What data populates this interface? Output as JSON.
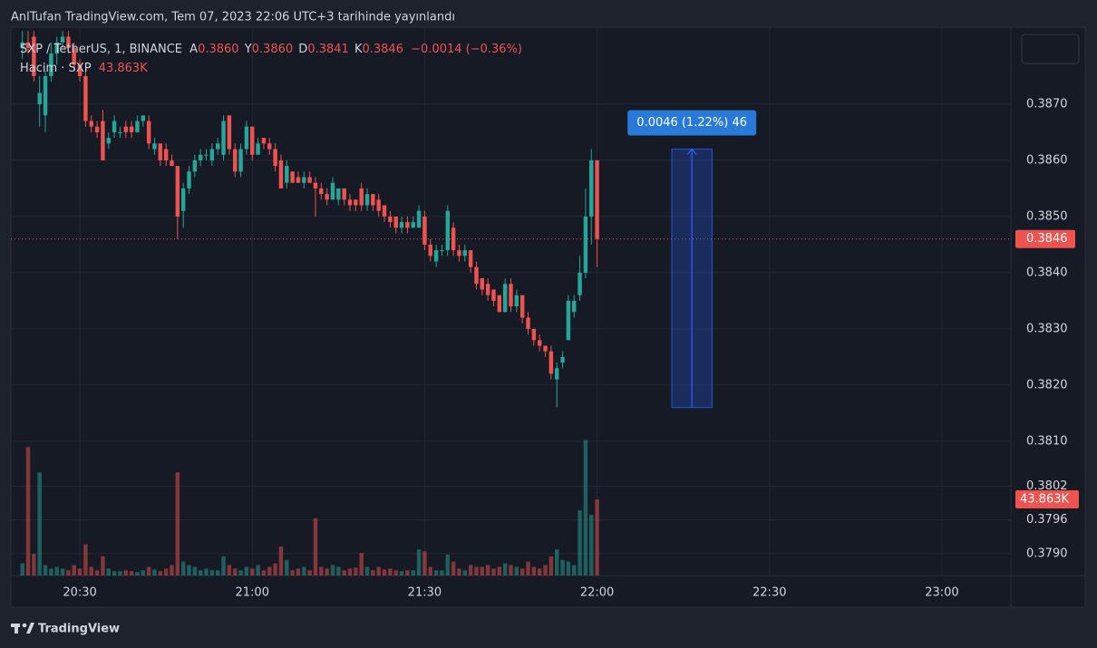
{
  "header": {
    "title": "AnlTufan TradingView.com, Tem 07, 2023 22:06 UTC+3 tarihinde yayınlandı"
  },
  "legend": {
    "symbol": "SXP / TetherUS, 1, BINANCE",
    "open_label": "A",
    "open": "0.3860",
    "high_label": "Y",
    "high": "0.3860",
    "low_label": "D",
    "low": "0.3841",
    "close_label": "K",
    "close": "0.3846",
    "change": "−0.0014 (−0.36%)",
    "volume_name": "Hacim · SXP",
    "volume": "43.863K"
  },
  "footer": {
    "brand": "TradingView"
  },
  "chart_data": {
    "type": "candlestick",
    "x": [
      "20:20",
      "20:21",
      "20:22",
      "20:23",
      "20:24",
      "20:25",
      "20:26",
      "20:27",
      "20:28",
      "20:29",
      "20:30",
      "20:31",
      "20:32",
      "20:33",
      "20:34",
      "20:35",
      "20:36",
      "20:37",
      "20:38",
      "20:39",
      "20:40",
      "20:41",
      "20:42",
      "20:43",
      "20:44",
      "20:45",
      "20:46",
      "20:47",
      "20:48",
      "20:49",
      "20:50",
      "20:51",
      "20:52",
      "20:53",
      "20:54",
      "20:55",
      "20:56",
      "20:57",
      "20:58",
      "20:59",
      "21:00",
      "21:01",
      "21:02",
      "21:03",
      "21:04",
      "21:05",
      "21:06",
      "21:07",
      "21:08",
      "21:09",
      "21:10",
      "21:11",
      "21:12",
      "21:13",
      "21:14",
      "21:15",
      "21:16",
      "21:17",
      "21:18",
      "21:19",
      "21:20",
      "21:21",
      "21:22",
      "21:23",
      "21:24",
      "21:25",
      "21:26",
      "21:27",
      "21:28",
      "21:29",
      "21:30",
      "21:31",
      "21:32",
      "21:33",
      "21:34",
      "21:35",
      "21:36",
      "21:37",
      "21:38",
      "21:39",
      "21:40",
      "21:41",
      "21:42",
      "21:43",
      "21:44",
      "21:45",
      "21:46",
      "21:47",
      "21:48",
      "21:49",
      "21:50",
      "21:51",
      "21:52",
      "21:53",
      "21:54",
      "21:55",
      "21:56",
      "21:57",
      "21:58",
      "21:59",
      "22:00"
    ],
    "open": [
      0.388,
      0.3881,
      0.3882,
      0.387,
      0.3868,
      0.3875,
      0.3879,
      0.3881,
      0.3882,
      0.388,
      0.3877,
      0.3875,
      0.3867,
      0.3866,
      0.3867,
      0.3863,
      0.3865,
      0.3865,
      0.3866,
      0.3866,
      0.3865,
      0.3867,
      0.3867,
      0.3862,
      0.3863,
      0.3862,
      0.386,
      0.3859,
      0.3851,
      0.3855,
      0.3858,
      0.386,
      0.3861,
      0.386,
      0.3862,
      0.3861,
      0.3868,
      0.3862,
      0.3858,
      0.3862,
      0.3866,
      0.3861,
      0.3864,
      0.3863,
      0.3862,
      0.386,
      0.3856,
      0.3858,
      0.3857,
      0.3856,
      0.3857,
      0.3856,
      0.3855,
      0.3854,
      0.3853,
      0.3853,
      0.3855,
      0.3853,
      0.3853,
      0.3855,
      0.3852,
      0.3854,
      0.3853,
      0.3852,
      0.385,
      0.385,
      0.3848,
      0.3849,
      0.3848,
      0.3848,
      0.385,
      0.3845,
      0.3842,
      0.3844,
      0.3844,
      0.3848,
      0.3844,
      0.3843,
      0.3844,
      0.3841,
      0.3839,
      0.3838,
      0.3837,
      0.3836,
      0.3833,
      0.3838,
      0.3834,
      0.3836,
      0.3832,
      0.383,
      0.3828,
      0.3827,
      0.3826,
      0.3821,
      0.3824,
      0.3828,
      0.3833,
      0.3836,
      0.384,
      0.385,
      0.386
    ],
    "high": [
      0.3883,
      0.3883,
      0.3883,
      0.3875,
      0.3876,
      0.3881,
      0.3882,
      0.3883,
      0.3883,
      0.3881,
      0.3878,
      0.3876,
      0.3868,
      0.3867,
      0.3869,
      0.3865,
      0.3868,
      0.3866,
      0.3867,
      0.3867,
      0.3868,
      0.3868,
      0.3868,
      0.3864,
      0.3863,
      0.3863,
      0.3861,
      0.3859,
      0.3856,
      0.3859,
      0.3861,
      0.3862,
      0.3862,
      0.3863,
      0.3864,
      0.3868,
      0.3868,
      0.3863,
      0.3863,
      0.3867,
      0.3866,
      0.3864,
      0.3864,
      0.3864,
      0.3863,
      0.3861,
      0.386,
      0.3858,
      0.3858,
      0.3858,
      0.3858,
      0.3857,
      0.3856,
      0.3855,
      0.3857,
      0.3855,
      0.3855,
      0.3854,
      0.3853,
      0.3856,
      0.3855,
      0.3854,
      0.3854,
      0.3852,
      0.3851,
      0.385,
      0.385,
      0.385,
      0.385,
      0.3852,
      0.3851,
      0.3846,
      0.3845,
      0.3845,
      0.3852,
      0.3849,
      0.3845,
      0.3845,
      0.3844,
      0.3842,
      0.3839,
      0.3839,
      0.3837,
      0.3836,
      0.3839,
      0.3839,
      0.3837,
      0.3836,
      0.3833,
      0.383,
      0.3829,
      0.3827,
      0.3827,
      0.3824,
      0.3826,
      0.3836,
      0.3836,
      0.3843,
      0.3855,
      0.3862,
      0.386
    ],
    "low": [
      0.3878,
      0.3879,
      0.3874,
      0.3866,
      0.3865,
      0.3874,
      0.3877,
      0.388,
      0.3879,
      0.3876,
      0.3874,
      0.3866,
      0.3865,
      0.3864,
      0.386,
      0.3862,
      0.3864,
      0.3864,
      0.3864,
      0.3864,
      0.3865,
      0.3866,
      0.3862,
      0.3861,
      0.3859,
      0.3859,
      0.3859,
      0.3846,
      0.3848,
      0.3854,
      0.3857,
      0.3859,
      0.386,
      0.3859,
      0.3861,
      0.386,
      0.3861,
      0.3857,
      0.3857,
      0.3861,
      0.386,
      0.3861,
      0.3862,
      0.3861,
      0.3858,
      0.3855,
      0.3855,
      0.3856,
      0.3856,
      0.3855,
      0.3856,
      0.385,
      0.3853,
      0.3852,
      0.3853,
      0.3852,
      0.3852,
      0.3851,
      0.3851,
      0.3851,
      0.3851,
      0.3851,
      0.385,
      0.3849,
      0.3848,
      0.3847,
      0.3847,
      0.3847,
      0.3848,
      0.3848,
      0.3844,
      0.3842,
      0.3841,
      0.3843,
      0.3843,
      0.3843,
      0.3842,
      0.3842,
      0.384,
      0.3837,
      0.3836,
      0.3835,
      0.3834,
      0.3833,
      0.3833,
      0.3833,
      0.3833,
      0.3831,
      0.3829,
      0.3827,
      0.3826,
      0.3825,
      0.3821,
      0.3816,
      0.3823,
      0.3828,
      0.3832,
      0.3835,
      0.3839,
      0.3845,
      0.3841
    ],
    "close": [
      0.3881,
      0.388,
      0.3875,
      0.3872,
      0.3875,
      0.3879,
      0.3881,
      0.3882,
      0.388,
      0.3877,
      0.3875,
      0.3867,
      0.3866,
      0.3865,
      0.386,
      0.3864,
      0.3867,
      0.3865,
      0.3865,
      0.3865,
      0.3867,
      0.3868,
      0.3863,
      0.3863,
      0.386,
      0.386,
      0.3859,
      0.385,
      0.3855,
      0.3858,
      0.386,
      0.3861,
      0.3861,
      0.3862,
      0.3863,
      0.3867,
      0.3862,
      0.3858,
      0.3862,
      0.3866,
      0.3861,
      0.3863,
      0.3863,
      0.3862,
      0.3859,
      0.3855,
      0.3859,
      0.3856,
      0.3856,
      0.3857,
      0.3856,
      0.3855,
      0.3854,
      0.3853,
      0.3856,
      0.3855,
      0.3853,
      0.3852,
      0.3852,
      0.3852,
      0.3854,
      0.3852,
      0.3851,
      0.385,
      0.3849,
      0.3848,
      0.3849,
      0.3848,
      0.3849,
      0.3851,
      0.3845,
      0.3843,
      0.3844,
      0.3844,
      0.3851,
      0.3844,
      0.3843,
      0.3844,
      0.3841,
      0.3838,
      0.3837,
      0.3836,
      0.3835,
      0.3833,
      0.3838,
      0.3834,
      0.3836,
      0.3832,
      0.383,
      0.3828,
      0.3827,
      0.3826,
      0.3822,
      0.3823,
      0.3825,
      0.3835,
      0.3835,
      0.384,
      0.385,
      0.386,
      0.3846
    ],
    "volume": [
      7000,
      74000,
      12500,
      59500,
      6000,
      4000,
      5000,
      4000,
      3000,
      6000,
      4000,
      18000,
      5000,
      3000,
      11000,
      4000,
      2500,
      2500,
      3000,
      2500,
      2000,
      3000,
      5000,
      3500,
      2500,
      4000,
      6000,
      59500,
      8000,
      6000,
      5000,
      3000,
      4000,
      3000,
      3000,
      11000,
      6000,
      4000,
      3000,
      5000,
      4000,
      6000,
      3000,
      5000,
      7000,
      16700,
      9000,
      3000,
      4000,
      5000,
      3000,
      33000,
      5000,
      4000,
      6000,
      5000,
      3000,
      4000,
      4500,
      13000,
      5000,
      3000,
      5000,
      3500,
      4000,
      3000,
      2500,
      3000,
      3000,
      15000,
      14000,
      5000,
      3000,
      3000,
      12000,
      8000,
      4000,
      3000,
      6000,
      5000,
      5000,
      6000,
      4000,
      5000,
      7000,
      6000,
      5000,
      4000,
      8000,
      5000,
      4000,
      6000,
      11000,
      15000,
      9000,
      8000,
      6000,
      37600,
      78000,
      35000,
      43863
    ],
    "xlim": [
      "20:18",
      "23:12"
    ],
    "xticks": [
      "20:30",
      "21:00",
      "21:30",
      "22:00",
      "22:30",
      "23:00"
    ],
    "ylim": [
      0.37861,
      0.38837
    ],
    "yticks": [
      {
        "value": 0.387,
        "label": "0.3870"
      },
      {
        "value": 0.386,
        "label": "0.3860"
      },
      {
        "value": 0.385,
        "label": "0.3850"
      },
      {
        "value": 0.384,
        "label": "0.3840"
      },
      {
        "value": 0.383,
        "label": "0.3830"
      },
      {
        "value": 0.382,
        "label": "0.3820"
      },
      {
        "value": 0.381,
        "label": "0.3810"
      },
      0.3802,
      0.3796,
      {
        "value": 0.379,
        "label": "0.3790"
      }
    ],
    "y2lim": [
      0,
      316000
    ],
    "up_color": "#26a69a",
    "down_color": "#ef5350",
    "grid": true,
    "last_price": {
      "value": 0.3846,
      "label": "0.3846"
    },
    "last_volume": {
      "value": 43863,
      "label": "43.863K"
    },
    "measure": {
      "start": "22:13",
      "end": "22:20",
      "from": 0.3816,
      "to": 0.3862,
      "label": "0.0046 (1.22%) 46",
      "color": "#2962ff"
    }
  }
}
